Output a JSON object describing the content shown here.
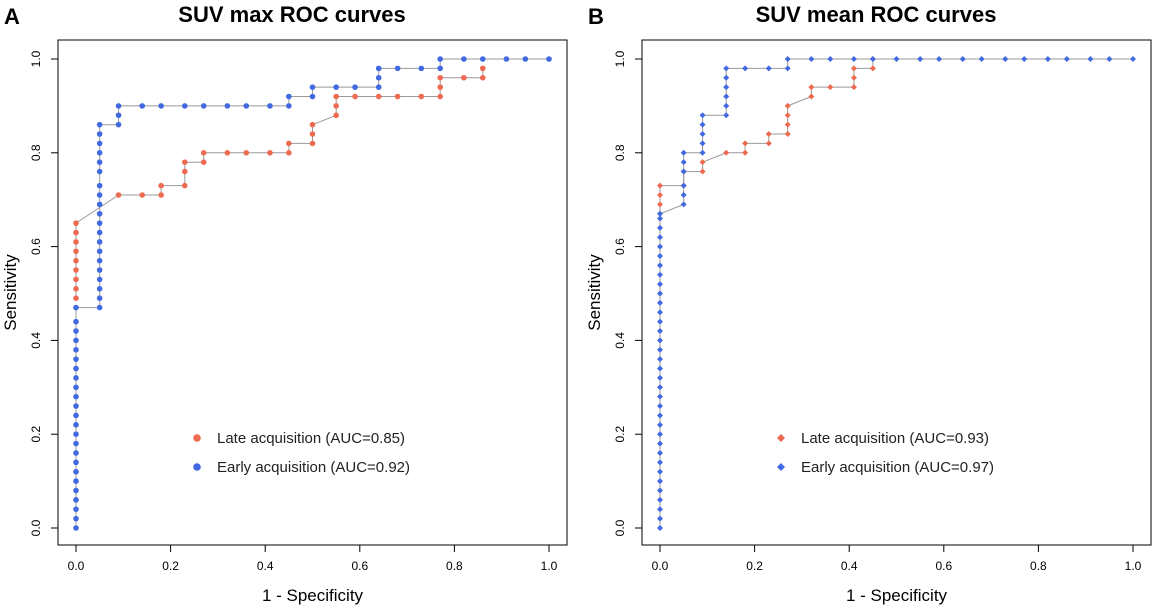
{
  "colors": {
    "late": "#ee6a50",
    "early": "#4169e1",
    "connector": "#999999",
    "axis": "#000000"
  },
  "chart_data": [
    {
      "type": "scatter",
      "panel_label": "A",
      "title": "SUV max ROC curves",
      "xlabel": "1 - Specificity",
      "ylabel": "Sensitivity",
      "xlim": [
        0,
        1
      ],
      "ylim": [
        0,
        1
      ],
      "xticks": [
        "0.0",
        "0.2",
        "0.4",
        "0.6",
        "0.8",
        "1.0"
      ],
      "yticks": [
        "0.0",
        "0.2",
        "0.4",
        "0.6",
        "0.8",
        "1.0"
      ],
      "legend_position": "bottom-center",
      "series": [
        {
          "name": "Late acquisition (AUC=0.85)",
          "key": "late",
          "marker": "circle",
          "points": [
            [
              0,
              0.49
            ],
            [
              0,
              0.51
            ],
            [
              0,
              0.53
            ],
            [
              0,
              0.55
            ],
            [
              0,
              0.57
            ],
            [
              0,
              0.59
            ],
            [
              0,
              0.61
            ],
            [
              0,
              0.63
            ],
            [
              0,
              0.65
            ],
            [
              0.09,
              0.71
            ],
            [
              0.14,
              0.71
            ],
            [
              0.18,
              0.71
            ],
            [
              0.18,
              0.73
            ],
            [
              0.23,
              0.73
            ],
            [
              0.23,
              0.76
            ],
            [
              0.23,
              0.78
            ],
            [
              0.27,
              0.78
            ],
            [
              0.27,
              0.8
            ],
            [
              0.32,
              0.8
            ],
            [
              0.36,
              0.8
            ],
            [
              0.41,
              0.8
            ],
            [
              0.45,
              0.8
            ],
            [
              0.45,
              0.82
            ],
            [
              0.5,
              0.82
            ],
            [
              0.5,
              0.84
            ],
            [
              0.5,
              0.86
            ],
            [
              0.55,
              0.88
            ],
            [
              0.55,
              0.9
            ],
            [
              0.55,
              0.92
            ],
            [
              0.59,
              0.92
            ],
            [
              0.64,
              0.92
            ],
            [
              0.68,
              0.92
            ],
            [
              0.73,
              0.92
            ],
            [
              0.77,
              0.92
            ],
            [
              0.77,
              0.94
            ],
            [
              0.77,
              0.96
            ],
            [
              0.82,
              0.96
            ],
            [
              0.86,
              0.96
            ],
            [
              0.86,
              0.98
            ]
          ]
        },
        {
          "name": "Early acquisition (AUC=0.92)",
          "key": "early",
          "marker": "circle",
          "points": [
            [
              0,
              0.0
            ],
            [
              0,
              0.02
            ],
            [
              0,
              0.04
            ],
            [
              0,
              0.06
            ],
            [
              0,
              0.08
            ],
            [
              0,
              0.1
            ],
            [
              0,
              0.12
            ],
            [
              0,
              0.14
            ],
            [
              0,
              0.16
            ],
            [
              0,
              0.18
            ],
            [
              0,
              0.2
            ],
            [
              0,
              0.22
            ],
            [
              0,
              0.24
            ],
            [
              0,
              0.26
            ],
            [
              0,
              0.28
            ],
            [
              0,
              0.3
            ],
            [
              0,
              0.32
            ],
            [
              0,
              0.34
            ],
            [
              0,
              0.36
            ],
            [
              0,
              0.38
            ],
            [
              0,
              0.4
            ],
            [
              0,
              0.42
            ],
            [
              0,
              0.44
            ],
            [
              0,
              0.47
            ],
            [
              0.05,
              0.47
            ],
            [
              0.05,
              0.49
            ],
            [
              0.05,
              0.51
            ],
            [
              0.05,
              0.53
            ],
            [
              0.05,
              0.55
            ],
            [
              0.05,
              0.57
            ],
            [
              0.05,
              0.59
            ],
            [
              0.05,
              0.61
            ],
            [
              0.05,
              0.63
            ],
            [
              0.05,
              0.65
            ],
            [
              0.05,
              0.67
            ],
            [
              0.05,
              0.69
            ],
            [
              0.05,
              0.71
            ],
            [
              0.05,
              0.73
            ],
            [
              0.05,
              0.76
            ],
            [
              0.05,
              0.78
            ],
            [
              0.05,
              0.8
            ],
            [
              0.05,
              0.82
            ],
            [
              0.05,
              0.84
            ],
            [
              0.05,
              0.86
            ],
            [
              0.09,
              0.86
            ],
            [
              0.09,
              0.88
            ],
            [
              0.09,
              0.9
            ],
            [
              0.14,
              0.9
            ],
            [
              0.18,
              0.9
            ],
            [
              0.23,
              0.9
            ],
            [
              0.27,
              0.9
            ],
            [
              0.32,
              0.9
            ],
            [
              0.36,
              0.9
            ],
            [
              0.41,
              0.9
            ],
            [
              0.45,
              0.9
            ],
            [
              0.45,
              0.92
            ],
            [
              0.5,
              0.92
            ],
            [
              0.5,
              0.94
            ],
            [
              0.55,
              0.94
            ],
            [
              0.59,
              0.94
            ],
            [
              0.64,
              0.94
            ],
            [
              0.64,
              0.96
            ],
            [
              0.64,
              0.98
            ],
            [
              0.68,
              0.98
            ],
            [
              0.73,
              0.98
            ],
            [
              0.77,
              0.98
            ],
            [
              0.77,
              1.0
            ],
            [
              0.82,
              1.0
            ],
            [
              0.86,
              1.0
            ],
            [
              0.91,
              1.0
            ],
            [
              0.95,
              1.0
            ],
            [
              1.0,
              1.0
            ]
          ]
        }
      ]
    },
    {
      "type": "scatter",
      "panel_label": "B",
      "title": "SUV mean ROC curves",
      "xlabel": "1 - Specificity",
      "ylabel": "Sensitivity",
      "xlim": [
        0,
        1
      ],
      "ylim": [
        0,
        1
      ],
      "xticks": [
        "0.0",
        "0.2",
        "0.4",
        "0.6",
        "0.8",
        "1.0"
      ],
      "yticks": [
        "0.0",
        "0.2",
        "0.4",
        "0.6",
        "0.8",
        "1.0"
      ],
      "legend_position": "bottom-center",
      "series": [
        {
          "name": "Late acquisition (AUC=0.93)",
          "key": "late",
          "marker": "diamond",
          "points": [
            [
              0,
              0.67
            ],
            [
              0,
              0.69
            ],
            [
              0,
              0.71
            ],
            [
              0,
              0.73
            ],
            [
              0.05,
              0.73
            ],
            [
              0.05,
              0.76
            ],
            [
              0.09,
              0.76
            ],
            [
              0.09,
              0.78
            ],
            [
              0.14,
              0.8
            ],
            [
              0.18,
              0.8
            ],
            [
              0.18,
              0.82
            ],
            [
              0.23,
              0.82
            ],
            [
              0.23,
              0.84
            ],
            [
              0.27,
              0.84
            ],
            [
              0.27,
              0.86
            ],
            [
              0.27,
              0.88
            ],
            [
              0.27,
              0.9
            ],
            [
              0.32,
              0.92
            ],
            [
              0.32,
              0.94
            ],
            [
              0.36,
              0.94
            ],
            [
              0.41,
              0.94
            ],
            [
              0.41,
              0.96
            ],
            [
              0.41,
              0.98
            ],
            [
              0.45,
              0.98
            ],
            [
              0.45,
              1.0
            ]
          ]
        },
        {
          "name": "Early acquisition (AUC=0.97)",
          "key": "early",
          "marker": "diamond",
          "points": [
            [
              0,
              0.0
            ],
            [
              0,
              0.02
            ],
            [
              0,
              0.04
            ],
            [
              0,
              0.06
            ],
            [
              0,
              0.08
            ],
            [
              0,
              0.1
            ],
            [
              0,
              0.12
            ],
            [
              0,
              0.14
            ],
            [
              0,
              0.16
            ],
            [
              0,
              0.18
            ],
            [
              0,
              0.2
            ],
            [
              0,
              0.22
            ],
            [
              0,
              0.24
            ],
            [
              0,
              0.26
            ],
            [
              0,
              0.28
            ],
            [
              0,
              0.3
            ],
            [
              0,
              0.32
            ],
            [
              0,
              0.34
            ],
            [
              0,
              0.36
            ],
            [
              0,
              0.38
            ],
            [
              0,
              0.4
            ],
            [
              0,
              0.42
            ],
            [
              0,
              0.44
            ],
            [
              0,
              0.46
            ],
            [
              0,
              0.48
            ],
            [
              0,
              0.5
            ],
            [
              0,
              0.52
            ],
            [
              0,
              0.54
            ],
            [
              0,
              0.56
            ],
            [
              0,
              0.58
            ],
            [
              0,
              0.6
            ],
            [
              0,
              0.62
            ],
            [
              0,
              0.64
            ],
            [
              0,
              0.66
            ],
            [
              0,
              0.67
            ],
            [
              0.05,
              0.69
            ],
            [
              0.05,
              0.71
            ],
            [
              0.05,
              0.73
            ],
            [
              0.05,
              0.76
            ],
            [
              0.05,
              0.78
            ],
            [
              0.05,
              0.8
            ],
            [
              0.09,
              0.8
            ],
            [
              0.09,
              0.82
            ],
            [
              0.09,
              0.84
            ],
            [
              0.09,
              0.86
            ],
            [
              0.09,
              0.88
            ],
            [
              0.14,
              0.88
            ],
            [
              0.14,
              0.9
            ],
            [
              0.14,
              0.92
            ],
            [
              0.14,
              0.94
            ],
            [
              0.14,
              0.96
            ],
            [
              0.14,
              0.98
            ],
            [
              0.18,
              0.98
            ],
            [
              0.23,
              0.98
            ],
            [
              0.27,
              0.98
            ],
            [
              0.27,
              1.0
            ],
            [
              0.32,
              1.0
            ],
            [
              0.36,
              1.0
            ],
            [
              0.41,
              1.0
            ],
            [
              0.45,
              1.0
            ],
            [
              0.5,
              1.0
            ],
            [
              0.55,
              1.0
            ],
            [
              0.59,
              1.0
            ],
            [
              0.64,
              1.0
            ],
            [
              0.68,
              1.0
            ],
            [
              0.73,
              1.0
            ],
            [
              0.77,
              1.0
            ],
            [
              0.82,
              1.0
            ],
            [
              0.86,
              1.0
            ],
            [
              0.91,
              1.0
            ],
            [
              0.95,
              1.0
            ],
            [
              1.0,
              1.0
            ]
          ]
        }
      ]
    }
  ]
}
